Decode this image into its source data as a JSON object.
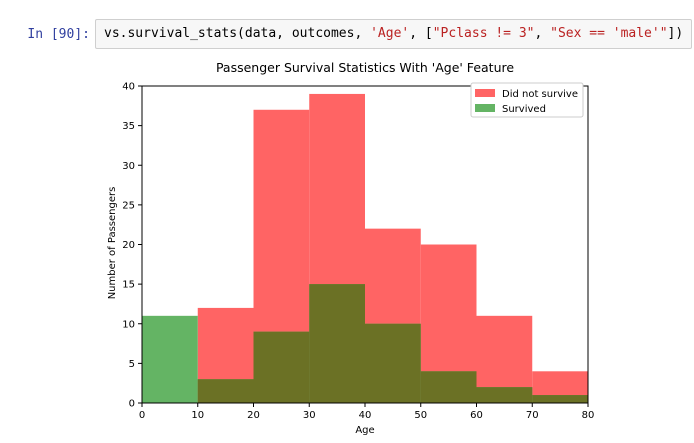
{
  "cell": {
    "prompt": "In [90]:",
    "code_parts": [
      {
        "t": "vs.survival_stats(data, outcomes, ",
        "c": "plain"
      },
      {
        "t": "'Age'",
        "c": "str"
      },
      {
        "t": ", [",
        "c": "plain"
      },
      {
        "t": "\"Pclass != 3\"",
        "c": "str"
      },
      {
        "t": ", ",
        "c": "plain"
      },
      {
        "t": "\"Sex == 'male'\"",
        "c": "str"
      },
      {
        "t": "])",
        "c": "plain"
      }
    ]
  },
  "chart_data": {
    "type": "bar",
    "title": "Passenger Survival Statistics With 'Age' Feature",
    "xlabel": "Age",
    "ylabel": "Number of Passengers",
    "xlim": [
      0,
      80
    ],
    "ylim": [
      0,
      40
    ],
    "xticks": [
      0,
      10,
      20,
      30,
      40,
      50,
      60,
      70,
      80
    ],
    "yticks": [
      0,
      5,
      10,
      15,
      20,
      25,
      30,
      35,
      40
    ],
    "bin_edges": [
      0,
      10,
      20,
      30,
      40,
      50,
      60,
      70,
      80
    ],
    "series": [
      {
        "name": "Did not survive",
        "color": "#ff6464",
        "values": [
          0,
          12,
          37,
          39,
          22,
          20,
          11,
          4
        ]
      },
      {
        "name": "Survived",
        "color": "#64b464",
        "values": [
          11,
          3,
          9,
          15,
          10,
          4,
          2,
          1
        ]
      }
    ],
    "overlap_color": "#6b7125",
    "legend_position": "upper right",
    "grid": false
  }
}
